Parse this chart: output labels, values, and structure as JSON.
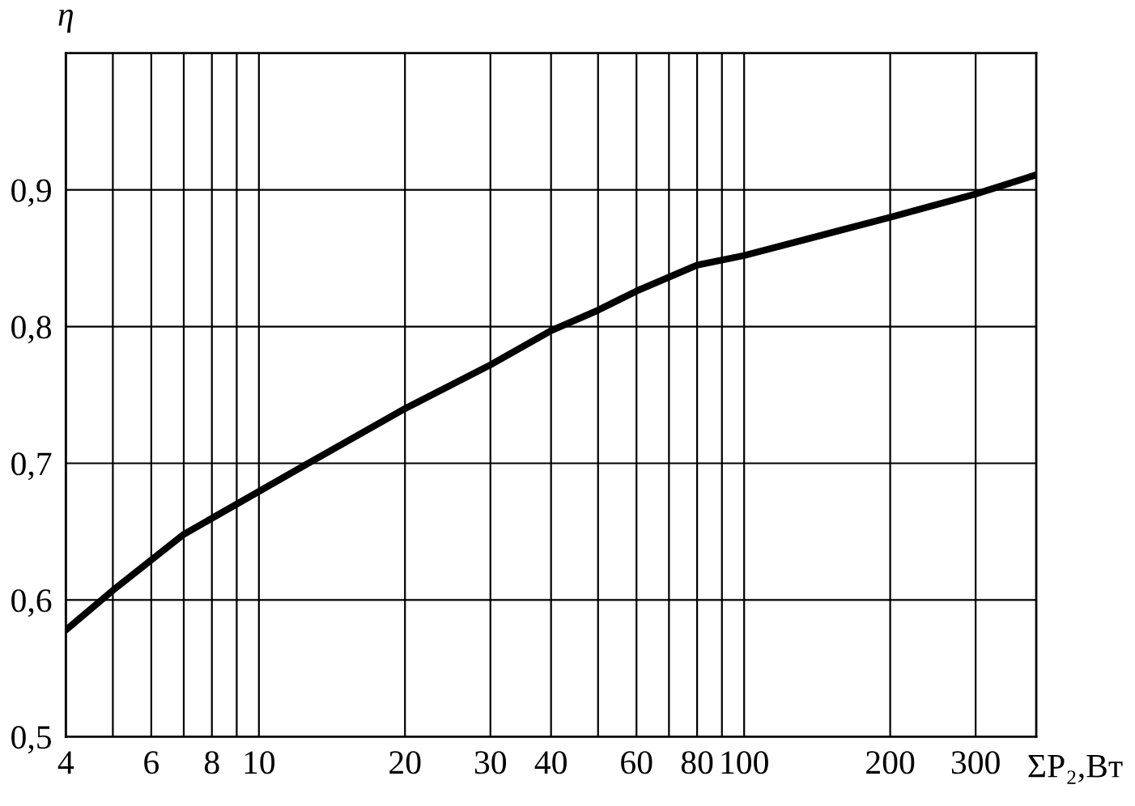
{
  "chart_data": {
    "type": "line",
    "xlabel": "ΣP₂,Вт",
    "ylabel": "η",
    "log": "x",
    "grid": true,
    "color": "#000000",
    "x": [
      4,
      5,
      7,
      12.5,
      20,
      30,
      40,
      50,
      60,
      80,
      100,
      200,
      300,
      400
    ],
    "values": [
      0.578,
      0.607,
      0.648,
      0.699,
      0.74,
      0.772,
      0.797,
      0.812,
      0.826,
      0.845,
      0.852,
      0.88,
      0.897,
      0.911
    ],
    "xlim": [
      4,
      400
    ],
    "xticks": [
      4,
      {
        "value": 5,
        "label": null
      },
      6,
      {
        "value": 7,
        "label": null
      },
      8,
      {
        "value": 9,
        "label": null
      },
      10,
      20,
      30,
      40,
      {
        "value": 50,
        "label": null
      },
      60,
      {
        "value": 70,
        "label": null
      },
      80,
      {
        "value": 90,
        "label": null
      },
      100,
      200,
      300
    ],
    "ylim": [
      0.5,
      1.0
    ],
    "yticks": [
      {
        "value": 0.5,
        "label": "0,5"
      },
      {
        "value": 0.6,
        "label": "0,6"
      },
      {
        "value": 0.7,
        "label": "0,7"
      },
      {
        "value": 0.8,
        "label": "0,8"
      },
      {
        "value": 0.9,
        "label": "0,9"
      }
    ]
  }
}
